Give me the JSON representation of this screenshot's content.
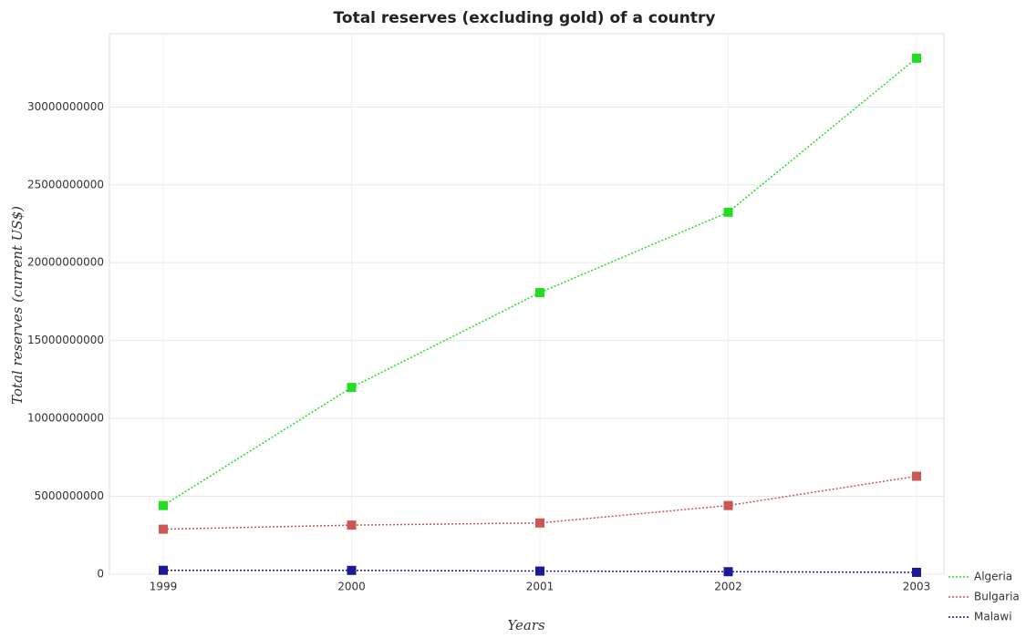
{
  "chart_data": {
    "type": "line",
    "title": "Total reserves (excluding gold) of a country",
    "x_label": "Years",
    "y_label": "Total reserves (current US$)",
    "categories": [
      "1999",
      "2000",
      "2001",
      "2002",
      "2003"
    ],
    "series": [
      {
        "name": "Algeria",
        "color": "#22dd22",
        "values": [
          4410000000,
          11990000000,
          18080000000,
          23240000000,
          33130000000
        ]
      },
      {
        "name": "Bulgaria",
        "color": "#cc5555",
        "values": [
          2890000000,
          3150000000,
          3290000000,
          4410000000,
          6290000000
        ]
      },
      {
        "name": "Malawi",
        "color": "#1a1a99",
        "values": [
          250000000,
          245000000,
          200000000,
          160000000,
          120000000
        ]
      }
    ],
    "ylim": [
      0,
      34700000000
    ],
    "yticks": [
      0,
      5000000000,
      10000000000,
      15000000000,
      20000000000,
      25000000000,
      30000000000
    ],
    "grid": true,
    "legend": "bottom-right"
  }
}
